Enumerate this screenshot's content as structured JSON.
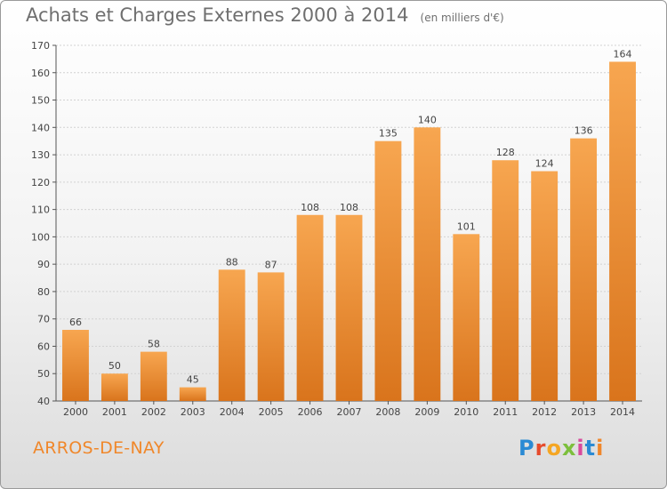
{
  "header": {
    "title": "Achats et Charges Externes 2000 à 2014",
    "unit": "(en milliers d'€)"
  },
  "footer": {
    "town": "ARROS-DE-NAY",
    "logo_letters": [
      "P",
      "r",
      "o",
      "x",
      "i",
      "t",
      "i"
    ]
  },
  "chart_data": {
    "type": "bar",
    "title": "Achats et Charges Externes 2000 à 2014",
    "subtitle": "(en milliers d'€)",
    "categories": [
      "2000",
      "2001",
      "2002",
      "2003",
      "2004",
      "2005",
      "2006",
      "2007",
      "2008",
      "2009",
      "2010",
      "2011",
      "2012",
      "2013",
      "2014"
    ],
    "values": [
      66,
      50,
      58,
      45,
      88,
      87,
      108,
      108,
      135,
      140,
      101,
      128,
      124,
      136,
      164
    ],
    "ylim": [
      40,
      170
    ],
    "yticks": [
      40,
      50,
      60,
      70,
      80,
      90,
      100,
      110,
      120,
      130,
      140,
      150,
      160,
      170
    ],
    "grid": true,
    "bar_color": "#f0872a"
  }
}
